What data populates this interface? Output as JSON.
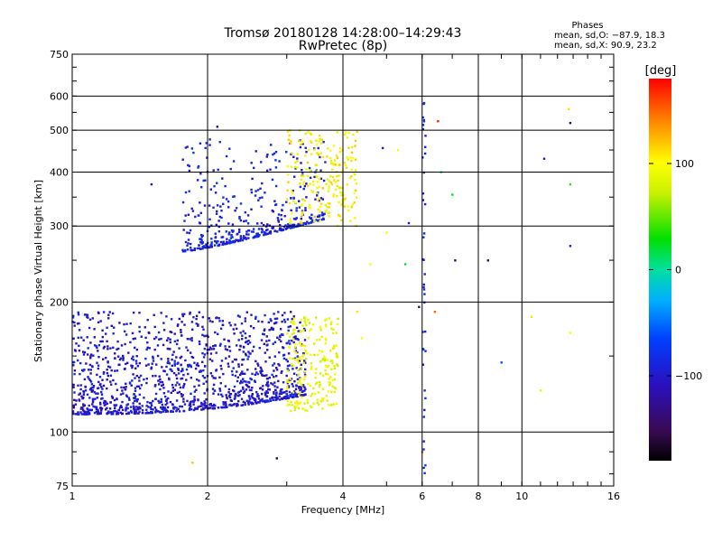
{
  "chart_data": {
    "type": "scatter",
    "title": "Tromsø 20180128 14:28:00–14:29:43",
    "subtitle": "RwPretec (8p)",
    "xlabel": "Frequency [MHz]",
    "ylabel": "Stationary phase Virtual Height [km]",
    "x_scale": "log",
    "y_scale": "log",
    "xlim": [
      1,
      16
    ],
    "ylim": [
      75,
      750
    ],
    "x_ticks": [
      1,
      2,
      4,
      6,
      8,
      10,
      16
    ],
    "x_tick_labels": [
      "1",
      "2",
      "4",
      "6",
      "8",
      "10",
      "16"
    ],
    "x_gridlines": [
      2,
      4,
      6,
      8,
      10
    ],
    "y_ticks": [
      75,
      100,
      200,
      300,
      400,
      500,
      600,
      750
    ],
    "y_tick_labels": [
      "75",
      "100",
      "200",
      "300",
      "400",
      "500",
      "600",
      "750"
    ],
    "y_gridlines": [
      100,
      200,
      300,
      400,
      500,
      600
    ],
    "grid": true,
    "legend": {
      "title": "Phases",
      "lines": [
        "mean, sd,O: −87.9, 18.3",
        "mean, sd,X:  90.9, 23.2"
      ]
    },
    "colorbar": {
      "label": "[deg]",
      "range": [
        -180,
        180
      ],
      "ticks": [
        100,
        0,
        -100
      ],
      "tick_labels": [
        "100",
        "0",
        "−100"
      ],
      "colormap": "rainbow"
    },
    "traces": [
      {
        "name": "E/F1 low layer O",
        "x_range": [
          1.0,
          3.3
        ],
        "y_range": [
          105,
          190
        ],
        "phase_mean": -100
      },
      {
        "name": "E/F1 low layer X",
        "x_range": [
          3.0,
          3.9
        ],
        "y_range": [
          112,
          185
        ],
        "phase_mean": 90
      },
      {
        "name": "F2 trace",
        "x_range": [
          1.75,
          3.65
        ],
        "y_range": [
          255,
          480
        ],
        "phase_mean": -90
      },
      {
        "name": "F2 trace X",
        "x_range": [
          3.0,
          4.3
        ],
        "y_range": [
          300,
          500
        ],
        "phase_mean": 100
      },
      {
        "name": "vertical streak",
        "x_range": [
          6.0,
          6.1
        ],
        "y_range": [
          80,
          600
        ],
        "phase_mean": -90
      }
    ],
    "scattered_points": [
      {
        "x": 2.1,
        "y": 510,
        "phase": -110
      },
      {
        "x": 1.5,
        "y": 375,
        "phase": -110
      },
      {
        "x": 4.9,
        "y": 455,
        "phase": -100
      },
      {
        "x": 5.3,
        "y": 450,
        "phase": 100
      },
      {
        "x": 5.0,
        "y": 290,
        "phase": 95
      },
      {
        "x": 5.6,
        "y": 305,
        "phase": -100
      },
      {
        "x": 6.6,
        "y": 400,
        "phase": 0
      },
      {
        "x": 7.0,
        "y": 355,
        "phase": 20
      },
      {
        "x": 6.5,
        "y": 525,
        "phase": 170
      },
      {
        "x": 7.1,
        "y": 250,
        "phase": -150
      },
      {
        "x": 8.4,
        "y": 250,
        "phase": -150
      },
      {
        "x": 11.2,
        "y": 430,
        "phase": -110
      },
      {
        "x": 12.7,
        "y": 560,
        "phase": 110
      },
      {
        "x": 12.8,
        "y": 520,
        "phase": -150
      },
      {
        "x": 12.8,
        "y": 375,
        "phase": 40
      },
      {
        "x": 12.8,
        "y": 270,
        "phase": -100
      },
      {
        "x": 12.8,
        "y": 170,
        "phase": 100
      },
      {
        "x": 10.5,
        "y": 185,
        "phase": 110
      },
      {
        "x": 11.0,
        "y": 125,
        "phase": 90
      },
      {
        "x": 9.0,
        "y": 145,
        "phase": -60
      },
      {
        "x": 4.6,
        "y": 245,
        "phase": 100
      },
      {
        "x": 5.5,
        "y": 245,
        "phase": 20
      },
      {
        "x": 5.9,
        "y": 195,
        "phase": -150
      },
      {
        "x": 6.4,
        "y": 190,
        "phase": 150
      },
      {
        "x": 6.0,
        "y": 90,
        "phase": 150
      },
      {
        "x": 1.85,
        "y": 85,
        "phase": 120
      },
      {
        "x": 2.85,
        "y": 87,
        "phase": -160
      },
      {
        "x": 4.4,
        "y": 165,
        "phase": 100
      },
      {
        "x": 4.3,
        "y": 190,
        "phase": 110
      }
    ]
  }
}
